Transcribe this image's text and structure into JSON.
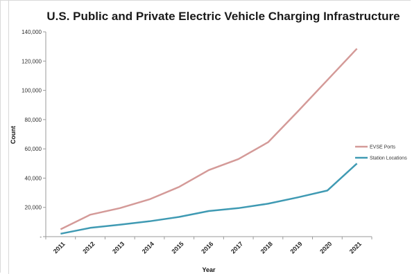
{
  "chart_data": {
    "type": "line",
    "title": "U.S. Public and Private Electric Vehicle Charging Infrastructure",
    "xlabel": "Year",
    "ylabel": "Count",
    "x": [
      "2011",
      "2012",
      "2013",
      "2014",
      "2015",
      "2016",
      "2017",
      "2018",
      "2019",
      "2020",
      "2021"
    ],
    "ylim": [
      0,
      140000
    ],
    "yticks": [
      0,
      20000,
      40000,
      60000,
      80000,
      100000,
      120000,
      140000
    ],
    "ytick_labels": [
      "-",
      "20,000",
      "40,000",
      "60,000",
      "80,000",
      "100,000",
      "120,000",
      "140,000"
    ],
    "grid": false,
    "legend_position": "right",
    "series": [
      {
        "name": "EVSE Ports",
        "color": "#d49a98",
        "values": [
          5000,
          15000,
          19500,
          25500,
          34000,
          45500,
          53000,
          64500,
          85500,
          107000,
          128500
        ]
      },
      {
        "name": "Station Locations",
        "color": "#3f9ab3",
        "values": [
          2000,
          6000,
          8200,
          10500,
          13500,
          17500,
          19500,
          22500,
          26800,
          31500,
          50000
        ]
      }
    ]
  }
}
